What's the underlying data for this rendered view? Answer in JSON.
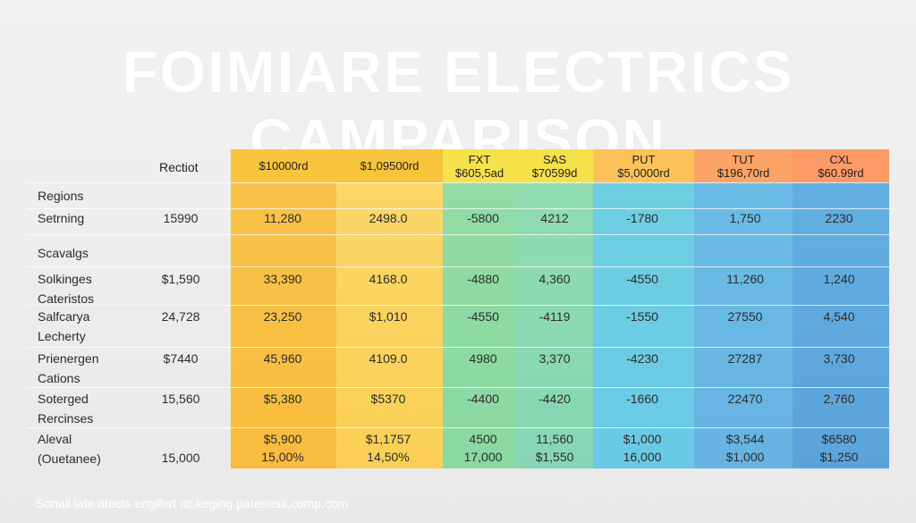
{
  "title": "FOIMIARE ELECTRICS CAMPARISON",
  "colors": {
    "c1": "#f9bc3d",
    "c2": "#fbd35a",
    "c3": "#8ad8a2",
    "c4": "#7dd3cf",
    "c5": "#6cc6e6",
    "c6": "#66b3e3",
    "c7": "#5ba3db"
  },
  "chart_data": {
    "type": "table",
    "title": "FOIMIARE ELECTRICS CAMPARISON",
    "row_header": "Rectiot",
    "column_headers": [
      [
        "$10000rd"
      ],
      [
        "$1,09500rd"
      ],
      [
        "FXT",
        "$605,5ad"
      ],
      [
        "SAS",
        "$70599d"
      ],
      [
        "PUT",
        "$5,0000rd"
      ],
      [
        "TUT",
        "$196,70rd"
      ],
      [
        "CXL",
        "$60.99rd"
      ]
    ],
    "rows": [
      {
        "label": [
          "Regions"
        ],
        "first": "",
        "values": []
      },
      {
        "label": [
          "Setrning"
        ],
        "first": "15990",
        "values": [
          "11,280",
          "2498.0",
          "-5800",
          "4212",
          "-1780",
          "1,750",
          "2230"
        ]
      },
      {
        "label": [
          "Scavalgs"
        ],
        "first": "",
        "values": []
      },
      {
        "label": [
          "Solkinges",
          "Cateristos"
        ],
        "first": "$1,590",
        "values": [
          "33,390",
          "4168.0",
          "-4880",
          "4,360",
          "-4550",
          "11,260",
          "1,240"
        ]
      },
      {
        "label": [
          "Salfcarya",
          "Lecherty"
        ],
        "first": "24,728",
        "values": [
          "23,250",
          "$1,010",
          "-4550",
          "-4119",
          "-1550",
          "27550",
          "4,540"
        ]
      },
      {
        "label": [
          "Prienergen",
          "Cations"
        ],
        "first": "$7440",
        "values": [
          "45,960",
          "4109.0",
          "4980",
          "3,370",
          "-4230",
          "27287",
          "3,730"
        ]
      },
      {
        "label": [
          "Sotergеd",
          "Rercinses"
        ],
        "first": "15,560",
        "values": [
          "$5,380",
          "$5370",
          "-4400",
          "-4420",
          "-1660",
          "22470",
          "2,760"
        ]
      },
      {
        "label": [
          "Aleval",
          "(Ouetanee)"
        ],
        "first": "15,000",
        "values": [
          [
            "$5,900",
            "15,00%"
          ],
          [
            "$1,1757",
            "14,50%"
          ],
          [
            "4500",
            "17,000"
          ],
          [
            "11,560",
            "$1,550"
          ],
          [
            "$1,000",
            "16,000"
          ],
          [
            "$3,544",
            "$1,000"
          ],
          [
            "$6580",
            "$1,250"
          ]
        ]
      }
    ]
  },
  "footer": "Sonall late atects englfert itc.keging pateriess.comp.com"
}
